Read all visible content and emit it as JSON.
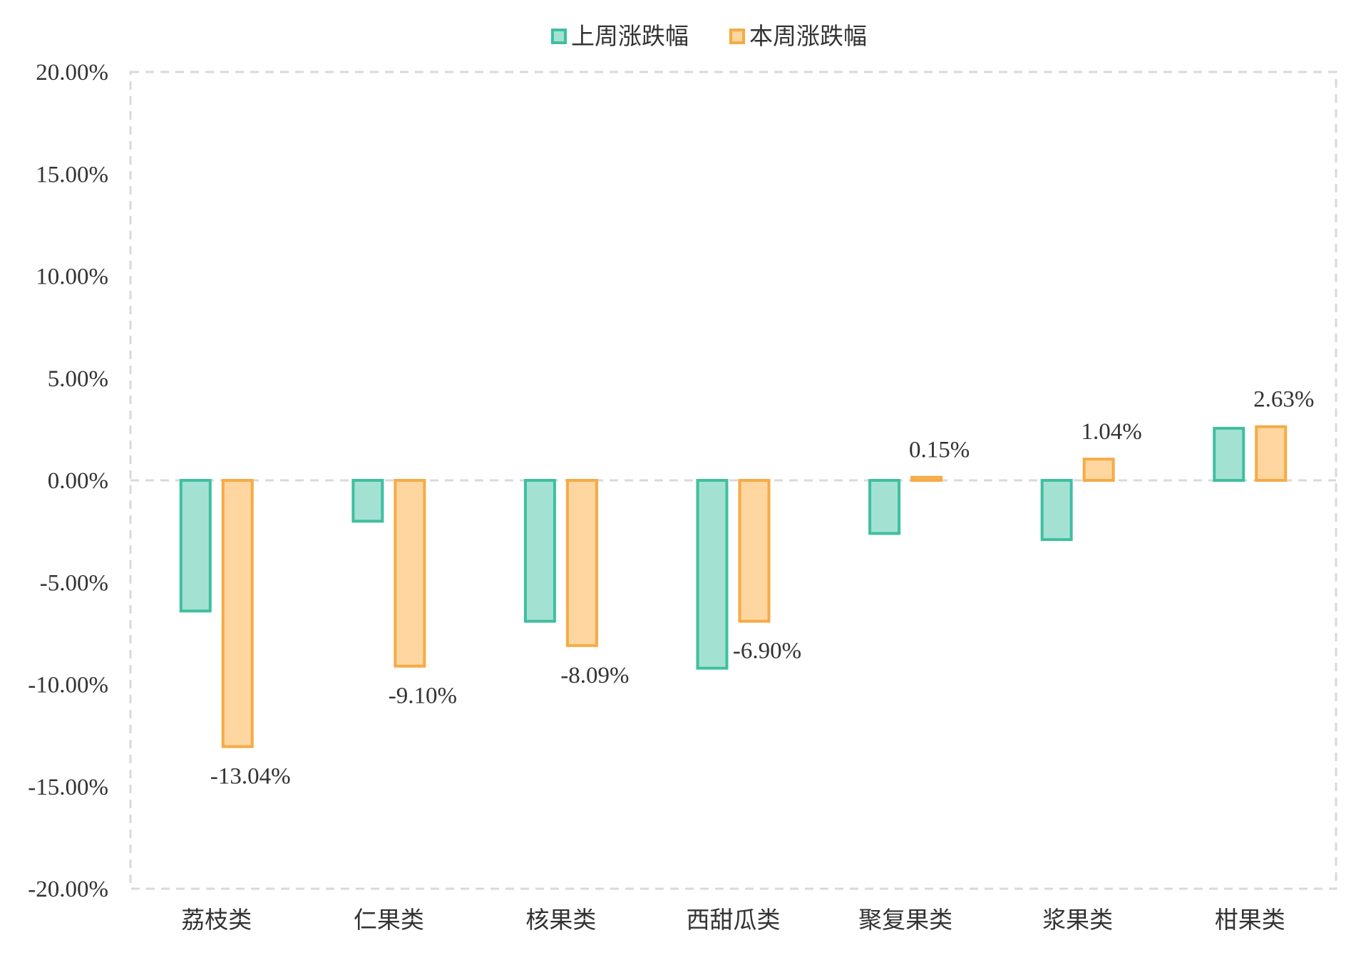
{
  "chart_data": {
    "type": "bar",
    "categories": [
      "荔枝类",
      "仁果类",
      "核果类",
      "西甜瓜类",
      "聚复果类",
      "浆果类",
      "柑果类"
    ],
    "series": [
      {
        "name": "上周涨跌幅",
        "values": [
          -6.4,
          -2.0,
          -6.9,
          -9.2,
          -2.6,
          -2.9,
          2.55
        ],
        "fill": "#a3e2d3",
        "stroke": "#3fbfa0",
        "show_labels": false
      },
      {
        "name": "本周涨跌幅",
        "values": [
          -13.04,
          -9.1,
          -8.09,
          -6.9,
          0.15,
          1.04,
          2.63
        ],
        "fill": "#ffd6a0",
        "stroke": "#f5ab45",
        "show_labels": true,
        "labels": [
          "-13.04%",
          "-9.10%",
          "-8.09%",
          "-6.90%",
          "0.15%",
          "1.04%",
          "2.63%"
        ]
      }
    ],
    "ylim": [
      -20,
      20
    ],
    "yticks": [
      20,
      15,
      10,
      5,
      0,
      -5,
      -10,
      -15,
      -20
    ],
    "ytick_labels": [
      "20.00%",
      "15.00%",
      "10.00%",
      "5.00%",
      "0.00%",
      "-5.00%",
      "-10.00%",
      "-15.00%",
      "-20.00%"
    ],
    "grid": "dashed border and zero line",
    "legend_position": "top-center",
    "title": "",
    "xlabel": "",
    "ylabel": ""
  }
}
